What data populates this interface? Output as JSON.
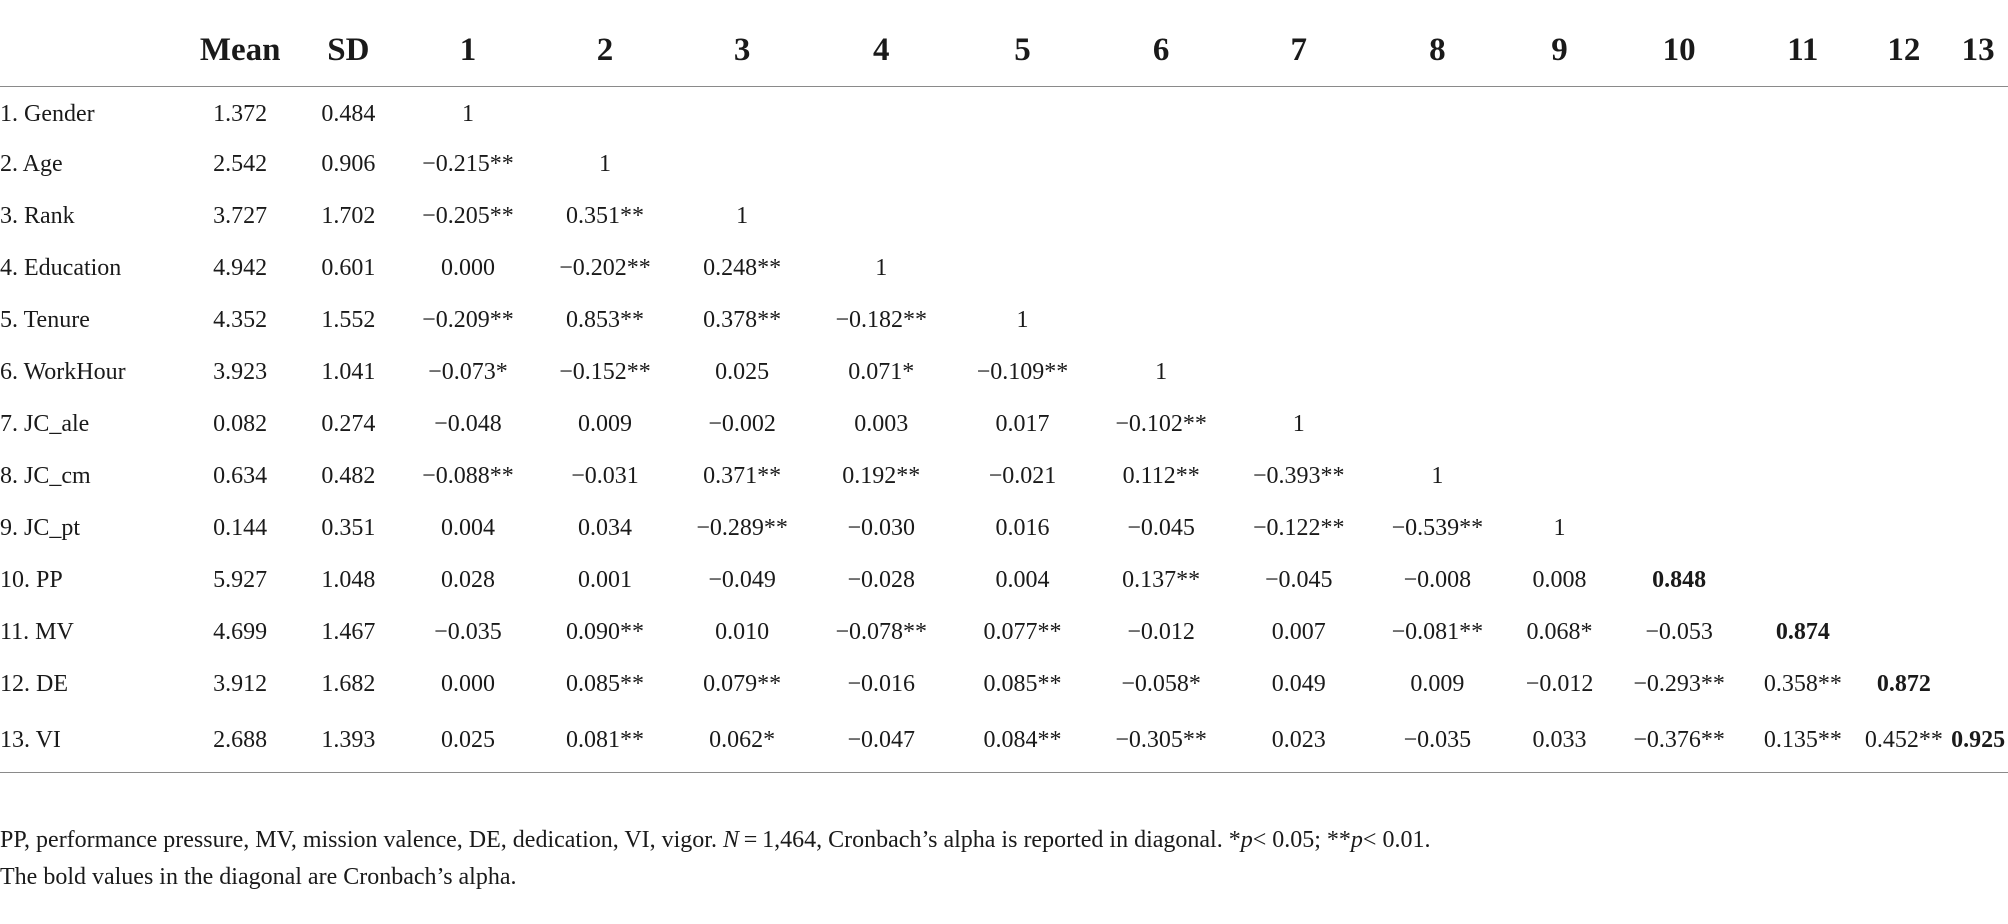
{
  "table": {
    "headers": [
      "",
      "Mean",
      "SD",
      "1",
      "2",
      "3",
      "4",
      "5",
      "6",
      "7",
      "8",
      "9",
      "10",
      "11",
      "12",
      "13"
    ],
    "rows": [
      {
        "label": "1. Gender",
        "mean": "1.372",
        "sd": "0.484",
        "cells": [
          "1",
          "",
          "",
          "",
          "",
          "",
          "",
          "",
          "",
          "",
          "",
          "",
          ""
        ]
      },
      {
        "label": "2. Age",
        "mean": "2.542",
        "sd": "0.906",
        "cells": [
          "−0.215**",
          "1",
          "",
          "",
          "",
          "",
          "",
          "",
          "",
          "",
          "",
          "",
          ""
        ]
      },
      {
        "label": "3. Rank",
        "mean": "3.727",
        "sd": "1.702",
        "cells": [
          "−0.205**",
          "0.351**",
          "1",
          "",
          "",
          "",
          "",
          "",
          "",
          "",
          "",
          "",
          ""
        ]
      },
      {
        "label": "4. Education",
        "mean": "4.942",
        "sd": "0.601",
        "cells": [
          "0.000",
          "−0.202**",
          "0.248**",
          "1",
          "",
          "",
          "",
          "",
          "",
          "",
          "",
          "",
          ""
        ]
      },
      {
        "label": "5. Tenure",
        "mean": "4.352",
        "sd": "1.552",
        "cells": [
          "−0.209**",
          "0.853**",
          "0.378**",
          "−0.182**",
          "1",
          "",
          "",
          "",
          "",
          "",
          "",
          "",
          ""
        ]
      },
      {
        "label": "6. WorkHour",
        "mean": "3.923",
        "sd": "1.041",
        "cells": [
          "−0.073*",
          "−0.152**",
          "0.025",
          "0.071*",
          "−0.109**",
          "1",
          "",
          "",
          "",
          "",
          "",
          "",
          ""
        ]
      },
      {
        "label": "7. JC_ale",
        "mean": "0.082",
        "sd": "0.274",
        "cells": [
          "−0.048",
          "0.009",
          "−0.002",
          "0.003",
          "0.017",
          "−0.102**",
          "1",
          "",
          "",
          "",
          "",
          "",
          ""
        ]
      },
      {
        "label": "8. JC_cm",
        "mean": "0.634",
        "sd": "0.482",
        "cells": [
          "−0.088**",
          "−0.031",
          "0.371**",
          "0.192**",
          "−0.021",
          "0.112**",
          "−0.393**",
          "1",
          "",
          "",
          "",
          "",
          ""
        ]
      },
      {
        "label": "9. JC_pt",
        "mean": "0.144",
        "sd": "0.351",
        "cells": [
          "0.004",
          "0.034",
          "−0.289**",
          "−0.030",
          "0.016",
          "−0.045",
          "−0.122**",
          "−0.539**",
          "1",
          "",
          "",
          "",
          ""
        ]
      },
      {
        "label": "10. PP",
        "mean": "5.927",
        "sd": "1.048",
        "cells": [
          "0.028",
          "0.001",
          "−0.049",
          "−0.028",
          "0.004",
          "0.137**",
          "−0.045",
          "−0.008",
          "0.008",
          "0.848",
          "",
          "",
          ""
        ]
      },
      {
        "label": "11. MV",
        "mean": "4.699",
        "sd": "1.467",
        "cells": [
          "−0.035",
          "0.090**",
          "0.010",
          "−0.078**",
          "0.077**",
          "−0.012",
          "0.007",
          "−0.081**",
          "0.068*",
          "−0.053",
          "0.874",
          "",
          ""
        ]
      },
      {
        "label": "12. DE",
        "mean": "3.912",
        "sd": "1.682",
        "cells": [
          "0.000",
          "0.085**",
          "0.079**",
          "−0.016",
          "0.085**",
          "−0.058*",
          "0.049",
          "0.009",
          "−0.012",
          "−0.293**",
          "0.358**",
          "0.872",
          ""
        ]
      },
      {
        "label": "13. VI",
        "mean": "2.688",
        "sd": "1.393",
        "cells": [
          "0.025",
          "0.081**",
          "0.062*",
          "−0.047",
          "0.084**",
          "−0.305**",
          "0.023",
          "−0.035",
          "0.033",
          "−0.376**",
          "0.135**",
          "0.452**",
          "0.925"
        ]
      }
    ],
    "bold_diagonal_from_row": 10
  },
  "footnotes": {
    "line1_part1": "PP, performance pressure, MV, mission valence, DE, dedication, VI, vigor. ",
    "line1_n_symbol": "N",
    "line1_part2": " = 1,464, Cronbach’s alpha is reported in diagonal. *",
    "line1_p_symbol_1": "p",
    "line1_part3": "< 0.05; **",
    "line1_p_symbol_2": "p",
    "line1_part4": "< 0.01.",
    "line2": "The bold values in the diagonal are Cronbach’s alpha."
  }
}
